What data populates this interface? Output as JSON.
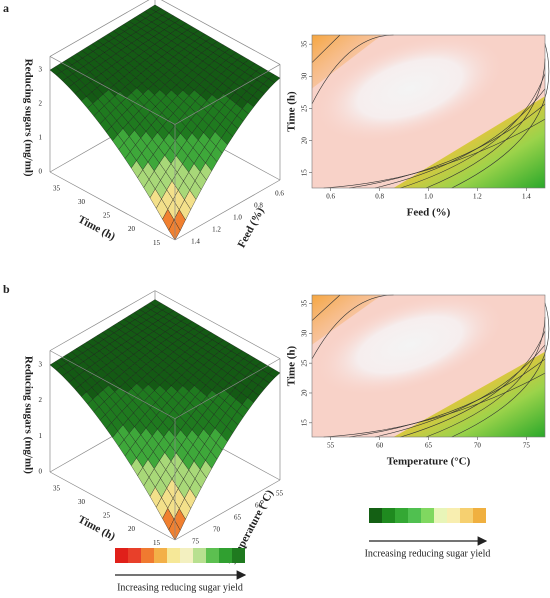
{
  "panels": [
    {
      "label": "a",
      "surface": {
        "z_label": "Reducing sugars (mg/ml)",
        "z_ticks": [
          "0",
          "1",
          "2",
          "3"
        ],
        "x_label": "Time (h)",
        "x_ticks": [
          "35",
          "30",
          "25",
          "20",
          "15"
        ],
        "y_label": "Feed (%)",
        "y_ticks": [
          "1.4",
          "1.2",
          "1.0",
          "0.8",
          "0.6"
        ]
      },
      "contour": {
        "x_label": "Feed (%)",
        "x_ticks": [
          "0.6",
          "0.8",
          "1.0",
          "1.2",
          "1.4"
        ],
        "y_label": "Time (h)",
        "y_ticks": [
          "15",
          "20",
          "25",
          "30",
          "35"
        ]
      }
    },
    {
      "label": "b",
      "surface": {
        "z_label": "Reducing sugars (mg/ml)",
        "z_ticks": [
          "0",
          "1",
          "2",
          "3"
        ],
        "x_label": "Time (h)",
        "x_ticks": [
          "35",
          "30",
          "25",
          "20",
          "15"
        ],
        "y_label": "Temperature (°C)",
        "y_ticks": [
          "75",
          "70",
          "65",
          "60",
          "55"
        ]
      },
      "contour": {
        "x_label": "Temperature (°C)",
        "x_ticks": [
          "55",
          "60",
          "65",
          "70",
          "75"
        ],
        "y_label": "Time (h)",
        "y_ticks": [
          "15",
          "20",
          "25",
          "30",
          "35"
        ]
      }
    }
  ],
  "legends": [
    {
      "caption": "Increasing reducing sugar yield"
    },
    {
      "caption": "Increasing reducing sugar yield"
    }
  ]
}
